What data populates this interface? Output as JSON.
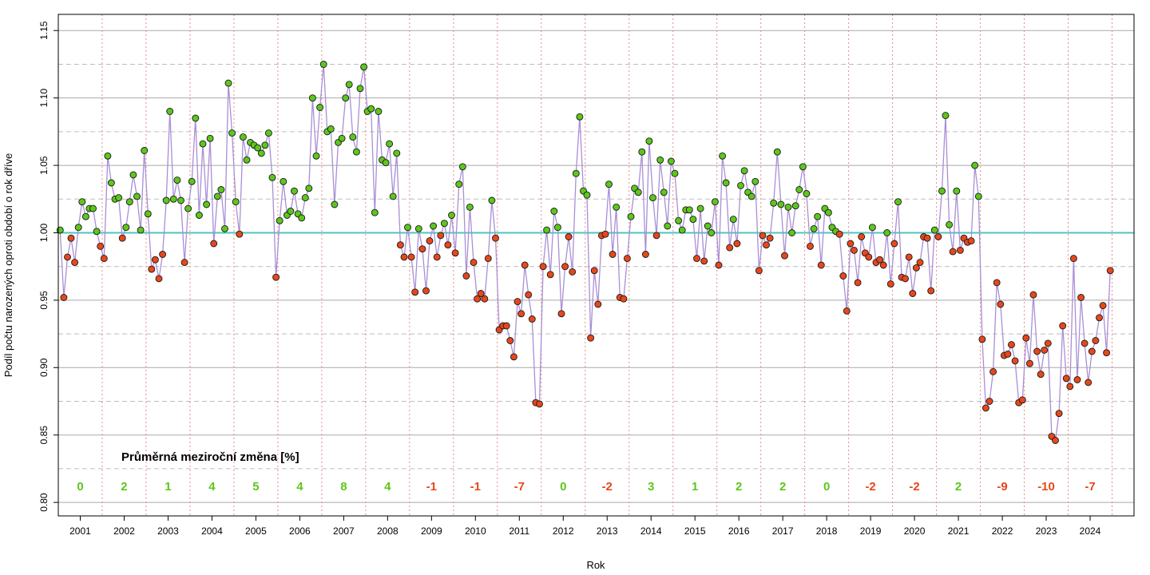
{
  "chart_data": {
    "type": "line",
    "xlabel": "Rok",
    "ylabel": "Podíl počtu narozených oproti období o rok dříve",
    "ylim": [
      0.8,
      1.15
    ],
    "yticks": [
      "0.80",
      "0.85",
      "0.90",
      "0.95",
      "1.00",
      "1.05",
      "1.10",
      "1.15"
    ],
    "xlim": [
      2000.5,
      2025.0
    ],
    "x_tick_labels": [
      "2001",
      "2002",
      "2003",
      "2004",
      "2005",
      "2006",
      "2007",
      "2008",
      "2009",
      "2010",
      "2011",
      "2012",
      "2013",
      "2014",
      "2015",
      "2016",
      "2017",
      "2018",
      "2019",
      "2020",
      "2021",
      "2022",
      "2023",
      "2024"
    ],
    "reference_line": 1.0,
    "grid": true,
    "colors": {
      "line": "#a98fd6",
      "increase": "#5cc71c",
      "decrease": "#e8471b",
      "reference": "#4fc4c0",
      "year_separator": "#e88a8a",
      "grid_solid": "#a9a9a9",
      "grid_dashed": "#bdbdbd"
    },
    "series": [
      {
        "values": [
          1.002,
          0.952,
          0.982,
          0.996,
          0.978,
          1.004,
          1.023,
          1.012,
          1.018,
          1.018,
          1.001,
          0.99,
          0.981,
          1.057,
          1.037,
          1.025,
          1.026,
          0.996,
          1.004,
          1.023,
          1.043,
          1.027,
          1.002,
          1.061,
          1.014,
          0.973,
          0.98,
          0.966,
          0.984,
          1.024,
          1.09,
          1.025,
          1.039,
          1.024,
          0.978,
          1.018,
          1.038,
          1.085,
          1.013,
          1.066,
          1.021,
          1.07,
          0.992,
          1.027,
          1.032,
          1.003,
          1.111,
          1.074,
          1.023,
          0.999,
          1.071,
          1.054,
          1.067,
          1.065,
          1.063,
          1.059,
          1.065,
          1.074,
          1.041,
          0.967,
          1.009,
          1.038,
          1.013,
          1.016,
          1.031,
          1.014,
          1.011,
          1.026,
          1.033,
          1.1,
          1.057,
          1.093,
          1.125,
          1.075,
          1.077,
          1.021,
          1.067,
          1.07,
          1.1,
          1.11,
          1.071,
          1.06,
          1.107,
          1.123,
          1.09,
          1.092,
          1.015,
          1.09,
          1.054,
          1.052,
          1.066,
          1.027,
          1.059,
          0.991,
          0.982,
          1.004,
          0.982,
          0.956,
          1.003,
          0.988,
          0.957,
          0.994,
          1.005,
          0.982,
          0.998,
          1.007,
          0.991,
          1.013,
          0.985,
          1.036,
          1.049,
          0.968,
          1.019,
          0.978,
          0.951,
          0.955,
          0.951,
          0.981,
          1.024,
          0.996,
          0.928,
          0.931,
          0.931,
          0.92,
          0.908,
          0.949,
          0.94,
          0.976,
          0.954,
          0.936,
          0.874,
          0.873,
          0.975,
          1.002,
          0.969,
          1.016,
          1.004,
          0.94,
          0.975,
          0.997,
          0.971,
          1.044,
          1.086,
          1.031,
          1.028,
          0.922,
          0.972,
          0.947,
          0.998,
          0.999,
          1.036,
          0.984,
          1.019,
          0.952,
          0.951,
          0.981,
          1.012,
          1.033,
          1.03,
          1.06,
          0.984,
          1.068,
          1.026,
          0.998,
          1.054,
          1.03,
          1.005,
          1.053,
          1.044,
          1.009,
          1.002,
          1.017,
          1.017,
          1.01,
          0.981,
          1.018,
          0.979,
          1.005,
          1.0,
          1.023,
          0.976,
          1.057,
          1.037,
          0.989,
          1.01,
          0.992,
          1.035,
          1.046,
          1.03,
          1.027,
          1.038,
          0.972,
          0.998,
          0.991,
          0.996,
          1.022,
          1.06,
          1.021,
          0.983,
          1.019,
          1.0,
          1.02,
          1.032,
          1.049,
          1.029,
          0.99,
          1.003,
          1.012,
          0.976,
          1.018,
          1.015,
          1.004,
          1.001,
          0.999,
          0.968,
          0.942,
          0.992,
          0.987,
          0.963,
          0.997,
          0.985,
          0.982,
          1.004,
          0.978,
          0.98,
          0.976,
          1.0,
          0.962,
          0.992,
          1.023,
          0.967,
          0.966,
          0.982,
          0.955,
          0.974,
          0.978,
          0.997,
          0.996,
          0.957,
          1.002,
          0.997,
          1.031,
          1.087,
          1.006,
          0.986,
          1.031,
          0.987,
          0.996,
          0.993,
          0.994,
          1.05,
          1.027,
          0.921,
          0.87,
          0.875,
          0.897,
          0.963,
          0.947,
          0.909,
          0.91,
          0.917,
          0.905,
          0.874,
          0.876,
          0.922,
          0.903,
          0.954,
          0.912,
          0.895,
          0.913,
          0.918,
          0.849,
          0.846,
          0.866,
          0.931,
          0.892,
          0.886,
          0.981,
          0.891,
          0.952,
          0.918,
          0.889,
          0.912,
          0.92,
          0.937,
          0.946,
          0.911,
          0.972
        ]
      }
    ],
    "annotation": {
      "title": "Průměrná meziroční změna [%]",
      "values": [
        "0",
        "2",
        "1",
        "4",
        "5",
        "4",
        "8",
        "4",
        "-1",
        "-1",
        "-7",
        "0",
        "-2",
        "3",
        "1",
        "2",
        "2",
        "0",
        "-2",
        "-2",
        "2",
        "-9",
        "-10",
        "-7"
      ]
    }
  }
}
